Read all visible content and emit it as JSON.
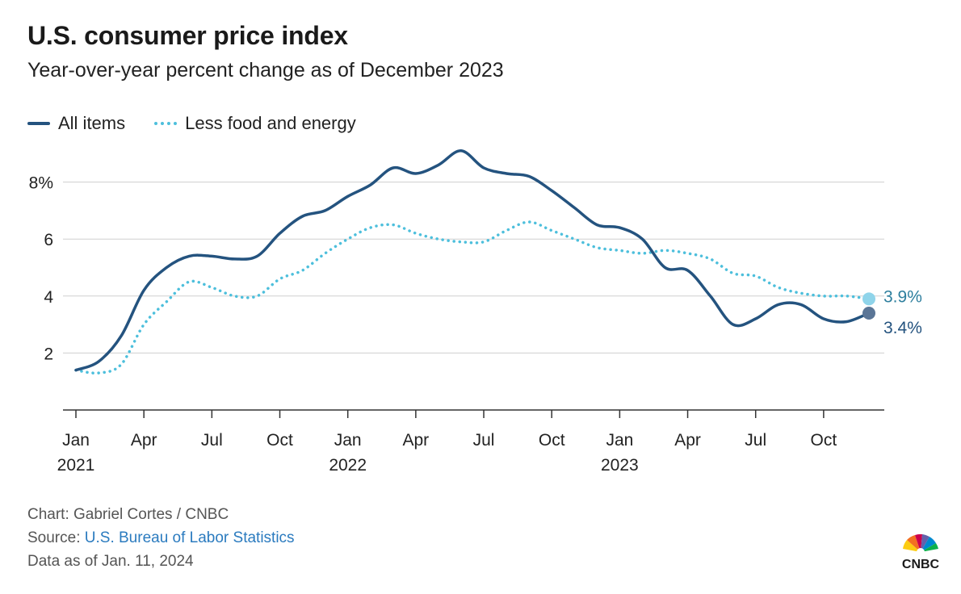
{
  "title": "U.S. consumer price index",
  "subtitle": "Year-over-year percent change as of December 2023",
  "legend": {
    "all_items": "All items",
    "less_food_energy": "Less food and energy"
  },
  "footer": {
    "chart_credit": "Chart: Gabriel Cortes / CNBC",
    "source_prefix": "Source: ",
    "source_link": "U.S. Bureau of Labor Statistics",
    "data_as_of": "Data as of Jan. 11, 2024"
  },
  "logo_text": "CNBC",
  "colors": {
    "all_items": "#24537f",
    "less_food_energy": "#4dbfdc",
    "grid": "#cfcfcf",
    "axis": "#333333",
    "link": "#2b7bbf"
  },
  "chart_data": {
    "type": "line",
    "x": [
      "2021-01",
      "2021-02",
      "2021-03",
      "2021-04",
      "2021-05",
      "2021-06",
      "2021-07",
      "2021-08",
      "2021-09",
      "2021-10",
      "2021-11",
      "2021-12",
      "2022-01",
      "2022-02",
      "2022-03",
      "2022-04",
      "2022-05",
      "2022-06",
      "2022-07",
      "2022-08",
      "2022-09",
      "2022-10",
      "2022-11",
      "2022-12",
      "2023-01",
      "2023-02",
      "2023-03",
      "2023-04",
      "2023-05",
      "2023-06",
      "2023-07",
      "2023-08",
      "2023-09",
      "2023-10",
      "2023-11",
      "2023-12"
    ],
    "x_tick_labels": [
      {
        "index": 0,
        "month": "Jan",
        "year": "2021"
      },
      {
        "index": 3,
        "month": "Apr",
        "year": ""
      },
      {
        "index": 6,
        "month": "Jul",
        "year": ""
      },
      {
        "index": 9,
        "month": "Oct",
        "year": ""
      },
      {
        "index": 12,
        "month": "Jan",
        "year": "2022"
      },
      {
        "index": 15,
        "month": "Apr",
        "year": ""
      },
      {
        "index": 18,
        "month": "Jul",
        "year": ""
      },
      {
        "index": 21,
        "month": "Oct",
        "year": ""
      },
      {
        "index": 24,
        "month": "Jan",
        "year": "2023"
      },
      {
        "index": 27,
        "month": "Apr",
        "year": ""
      },
      {
        "index": 30,
        "month": "Jul",
        "year": ""
      },
      {
        "index": 33,
        "month": "Oct",
        "year": ""
      }
    ],
    "y_ticks": [
      {
        "value": 2,
        "label": "2"
      },
      {
        "value": 4,
        "label": "4"
      },
      {
        "value": 6,
        "label": "6"
      },
      {
        "value": 8,
        "label": "8%"
      }
    ],
    "ylim": [
      0,
      9.5
    ],
    "grid": true,
    "legend_position": "top-left",
    "series": [
      {
        "name": "All items",
        "style": "solid",
        "values": [
          1.4,
          1.7,
          2.6,
          4.2,
          5.0,
          5.4,
          5.4,
          5.3,
          5.4,
          6.2,
          6.8,
          7.0,
          7.5,
          7.9,
          8.5,
          8.3,
          8.6,
          9.1,
          8.5,
          8.3,
          8.2,
          7.7,
          7.1,
          6.5,
          6.4,
          6.0,
          5.0,
          4.9,
          4.0,
          3.0,
          3.2,
          3.7,
          3.7,
          3.2,
          3.1,
          3.4
        ],
        "end_label": "3.4%"
      },
      {
        "name": "Less food and energy",
        "style": "dotted",
        "values": [
          1.4,
          1.3,
          1.6,
          3.0,
          3.8,
          4.5,
          4.3,
          4.0,
          4.0,
          4.6,
          4.9,
          5.5,
          6.0,
          6.4,
          6.5,
          6.2,
          6.0,
          5.9,
          5.9,
          6.3,
          6.6,
          6.3,
          6.0,
          5.7,
          5.6,
          5.5,
          5.6,
          5.5,
          5.3,
          4.8,
          4.7,
          4.3,
          4.1,
          4.0,
          4.0,
          3.9
        ],
        "end_label": "3.9%"
      }
    ]
  }
}
